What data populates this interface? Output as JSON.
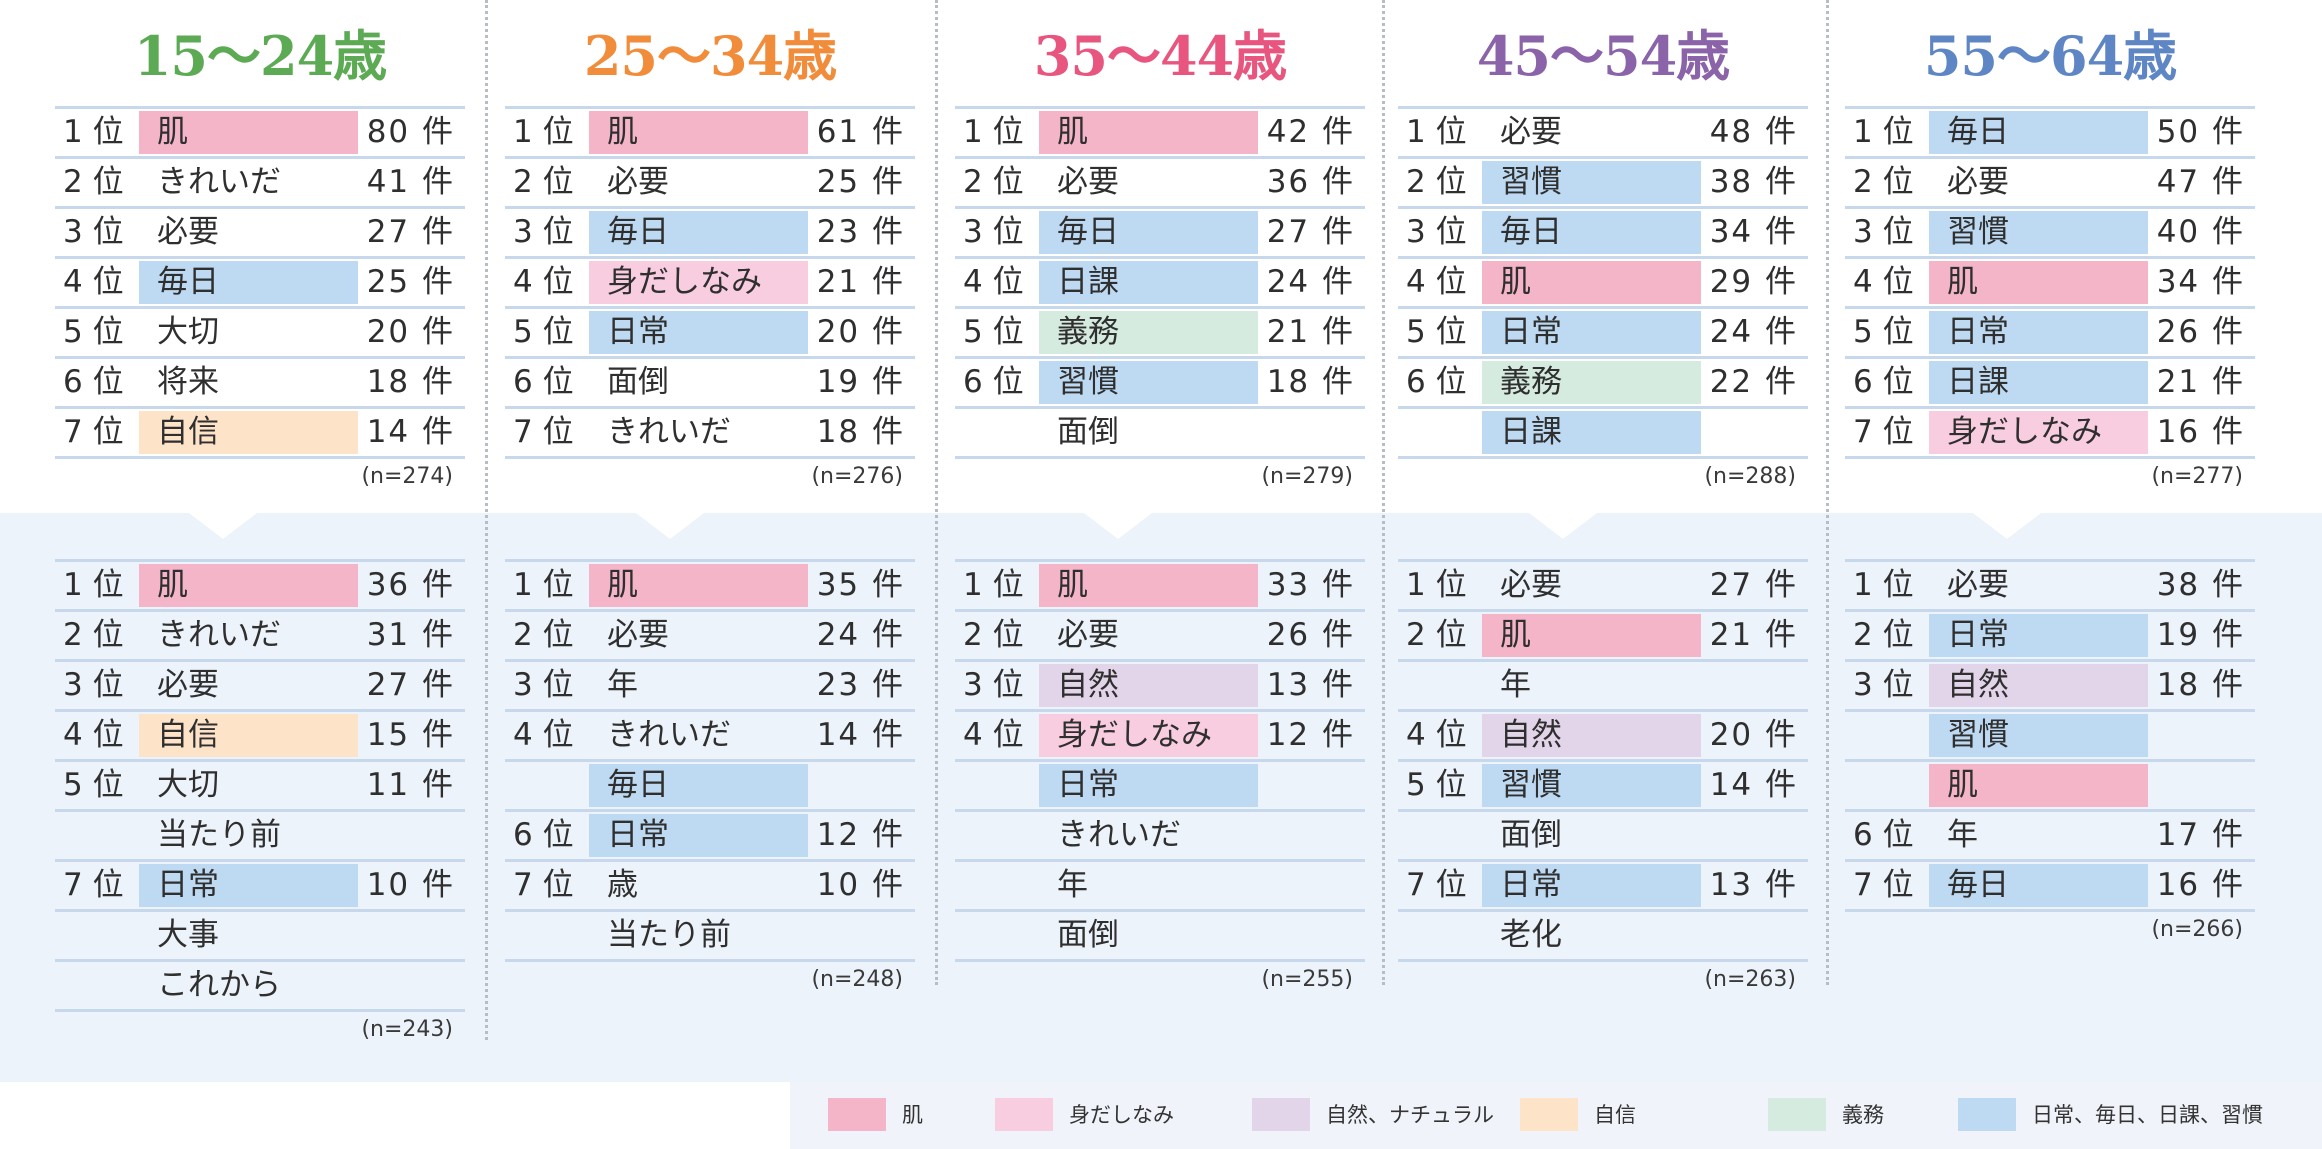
{
  "colors": {
    "skin": "#f4b5c9",
    "grooming": "#f8cde0",
    "natural": "#e3d5e9",
    "confidence": "#fde3c8",
    "duty": "#d6ebdf",
    "habit": "#bedaf3"
  },
  "groups": [
    {
      "title": "15〜24歳",
      "title_color": "#5daa55",
      "top": {
        "n": "(n=274)",
        "rows": [
          {
            "rank": "1 位",
            "word": "肌",
            "count": "80 件",
            "cat": "skin"
          },
          {
            "rank": "2 位",
            "word": "きれいだ",
            "count": "41 件",
            "cat": ""
          },
          {
            "rank": "3 位",
            "word": "必要",
            "count": "27 件",
            "cat": ""
          },
          {
            "rank": "4 位",
            "word": "毎日",
            "count": "25 件",
            "cat": "habit"
          },
          {
            "rank": "5 位",
            "word": "大切",
            "count": "20 件",
            "cat": ""
          },
          {
            "rank": "6 位",
            "word": "将来",
            "count": "18 件",
            "cat": ""
          },
          {
            "rank": "7 位",
            "word": "自信",
            "count": "14 件",
            "cat": "confidence"
          }
        ]
      },
      "bottom": {
        "n": "(n=243)",
        "rows": [
          {
            "rank": "1 位",
            "word": "肌",
            "count": "36 件",
            "cat": "skin"
          },
          {
            "rank": "2 位",
            "word": "きれいだ",
            "count": "31 件",
            "cat": ""
          },
          {
            "rank": "3 位",
            "word": "必要",
            "count": "27 件",
            "cat": ""
          },
          {
            "rank": "4 位",
            "word": "自信",
            "count": "15 件",
            "cat": "confidence"
          },
          {
            "rank": "5 位",
            "word": "大切",
            "count": "11 件",
            "cat": ""
          },
          {
            "rank": "",
            "word": "当たり前",
            "count": "",
            "cat": ""
          },
          {
            "rank": "7 位",
            "word": "日常",
            "count": "10 件",
            "cat": "habit"
          },
          {
            "rank": "",
            "word": "大事",
            "count": "",
            "cat": ""
          },
          {
            "rank": "",
            "word": "これから",
            "count": "",
            "cat": ""
          }
        ]
      }
    },
    {
      "title": "25〜34歳",
      "title_color": "#f08c3a",
      "top": {
        "n": "(n=276)",
        "rows": [
          {
            "rank": "1 位",
            "word": "肌",
            "count": "61 件",
            "cat": "skin"
          },
          {
            "rank": "2 位",
            "word": "必要",
            "count": "25 件",
            "cat": ""
          },
          {
            "rank": "3 位",
            "word": "毎日",
            "count": "23 件",
            "cat": "habit"
          },
          {
            "rank": "4 位",
            "word": "身だしなみ",
            "count": "21 件",
            "cat": "grooming"
          },
          {
            "rank": "5 位",
            "word": "日常",
            "count": "20 件",
            "cat": "habit"
          },
          {
            "rank": "6 位",
            "word": "面倒",
            "count": "19 件",
            "cat": ""
          },
          {
            "rank": "7 位",
            "word": "きれいだ",
            "count": "18 件",
            "cat": ""
          }
        ]
      },
      "bottom": {
        "n": "(n=248)",
        "rows": [
          {
            "rank": "1 位",
            "word": "肌",
            "count": "35 件",
            "cat": "skin"
          },
          {
            "rank": "2 位",
            "word": "必要",
            "count": "24 件",
            "cat": ""
          },
          {
            "rank": "3 位",
            "word": "年",
            "count": "23 件",
            "cat": ""
          },
          {
            "rank": "4 位",
            "word": "きれいだ",
            "count": "14 件",
            "cat": ""
          },
          {
            "rank": "",
            "word": "毎日",
            "count": "",
            "cat": "habit"
          },
          {
            "rank": "6 位",
            "word": "日常",
            "count": "12 件",
            "cat": "habit"
          },
          {
            "rank": "7 位",
            "word": "歳",
            "count": "10 件",
            "cat": ""
          },
          {
            "rank": "",
            "word": "当たり前",
            "count": "",
            "cat": ""
          }
        ]
      }
    },
    {
      "title": "35〜44歳",
      "title_color": "#e8557e",
      "top": {
        "n": "(n=279)",
        "rows": [
          {
            "rank": "1 位",
            "word": "肌",
            "count": "42 件",
            "cat": "skin"
          },
          {
            "rank": "2 位",
            "word": "必要",
            "count": "36 件",
            "cat": ""
          },
          {
            "rank": "3 位",
            "word": "毎日",
            "count": "27 件",
            "cat": "habit"
          },
          {
            "rank": "4 位",
            "word": "日課",
            "count": "24 件",
            "cat": "habit"
          },
          {
            "rank": "5 位",
            "word": "義務",
            "count": "21 件",
            "cat": "duty"
          },
          {
            "rank": "6 位",
            "word": "習慣",
            "count": "18 件",
            "cat": "habit"
          },
          {
            "rank": "",
            "word": "面倒",
            "count": "",
            "cat": ""
          }
        ]
      },
      "bottom": {
        "n": "(n=255)",
        "rows": [
          {
            "rank": "1 位",
            "word": "肌",
            "count": "33 件",
            "cat": "skin"
          },
          {
            "rank": "2 位",
            "word": "必要",
            "count": "26 件",
            "cat": ""
          },
          {
            "rank": "3 位",
            "word": "自然",
            "count": "13 件",
            "cat": "natural"
          },
          {
            "rank": "4 位",
            "word": "身だしなみ",
            "count": "12 件",
            "cat": "grooming"
          },
          {
            "rank": "",
            "word": "日常",
            "count": "",
            "cat": "habit"
          },
          {
            "rank": "",
            "word": "きれいだ",
            "count": "",
            "cat": ""
          },
          {
            "rank": "",
            "word": "年",
            "count": "",
            "cat": ""
          },
          {
            "rank": "",
            "word": "面倒",
            "count": "",
            "cat": ""
          }
        ]
      }
    },
    {
      "title": "45〜54歳",
      "title_color": "#8b63a8",
      "top": {
        "n": "(n=288)",
        "rows": [
          {
            "rank": "1 位",
            "word": "必要",
            "count": "48 件",
            "cat": ""
          },
          {
            "rank": "2 位",
            "word": "習慣",
            "count": "38 件",
            "cat": "habit"
          },
          {
            "rank": "3 位",
            "word": "毎日",
            "count": "34 件",
            "cat": "habit"
          },
          {
            "rank": "4 位",
            "word": "肌",
            "count": "29 件",
            "cat": "skin"
          },
          {
            "rank": "5 位",
            "word": "日常",
            "count": "24 件",
            "cat": "habit"
          },
          {
            "rank": "6 位",
            "word": "義務",
            "count": "22 件",
            "cat": "duty"
          },
          {
            "rank": "",
            "word": "日課",
            "count": "",
            "cat": "habit"
          }
        ]
      },
      "bottom": {
        "n": "(n=263)",
        "rows": [
          {
            "rank": "1 位",
            "word": "必要",
            "count": "27 件",
            "cat": ""
          },
          {
            "rank": "2 位",
            "word": "肌",
            "count": "21 件",
            "cat": "skin"
          },
          {
            "rank": "",
            "word": "年",
            "count": "",
            "cat": ""
          },
          {
            "rank": "4 位",
            "word": "自然",
            "count": "20 件",
            "cat": "natural"
          },
          {
            "rank": "5 位",
            "word": "習慣",
            "count": "14 件",
            "cat": "habit"
          },
          {
            "rank": "",
            "word": "面倒",
            "count": "",
            "cat": ""
          },
          {
            "rank": "7 位",
            "word": "日常",
            "count": "13 件",
            "cat": "habit"
          },
          {
            "rank": "",
            "word": "老化",
            "count": "",
            "cat": ""
          }
        ]
      }
    },
    {
      "title": "55〜64歳",
      "title_color": "#5f86c4",
      "top": {
        "n": "(n=277)",
        "rows": [
          {
            "rank": "1 位",
            "word": "毎日",
            "count": "50 件",
            "cat": "habit"
          },
          {
            "rank": "2 位",
            "word": "必要",
            "count": "47 件",
            "cat": ""
          },
          {
            "rank": "3 位",
            "word": "習慣",
            "count": "40 件",
            "cat": "habit"
          },
          {
            "rank": "4 位",
            "word": "肌",
            "count": "34 件",
            "cat": "skin"
          },
          {
            "rank": "5 位",
            "word": "日常",
            "count": "26 件",
            "cat": "habit"
          },
          {
            "rank": "6 位",
            "word": "日課",
            "count": "21 件",
            "cat": "habit"
          },
          {
            "rank": "7 位",
            "word": "身だしなみ",
            "count": "16 件",
            "cat": "grooming"
          }
        ]
      },
      "bottom": {
        "n": "(n=266)",
        "rows": [
          {
            "rank": "1 位",
            "word": "必要",
            "count": "38 件",
            "cat": ""
          },
          {
            "rank": "2 位",
            "word": "日常",
            "count": "19 件",
            "cat": "habit"
          },
          {
            "rank": "3 位",
            "word": "自然",
            "count": "18 件",
            "cat": "natural"
          },
          {
            "rank": "",
            "word": "習慣",
            "count": "",
            "cat": "habit"
          },
          {
            "rank": "",
            "word": "肌",
            "count": "",
            "cat": "skin"
          },
          {
            "rank": "6 位",
            "word": "年",
            "count": "17 件",
            "cat": ""
          },
          {
            "rank": "7 位",
            "word": "毎日",
            "count": "16 件",
            "cat": "habit"
          }
        ]
      }
    }
  ],
  "legend": [
    {
      "label": "肌",
      "cat": "skin"
    },
    {
      "label": "身だしなみ",
      "cat": "grooming"
    },
    {
      "label": "自然、ナチュラル",
      "cat": "natural"
    },
    {
      "label": "自信",
      "cat": "confidence"
    },
    {
      "label": "義務",
      "cat": "duty"
    },
    {
      "label": "日常、毎日、日課、習慣",
      "cat": "habit"
    }
  ]
}
